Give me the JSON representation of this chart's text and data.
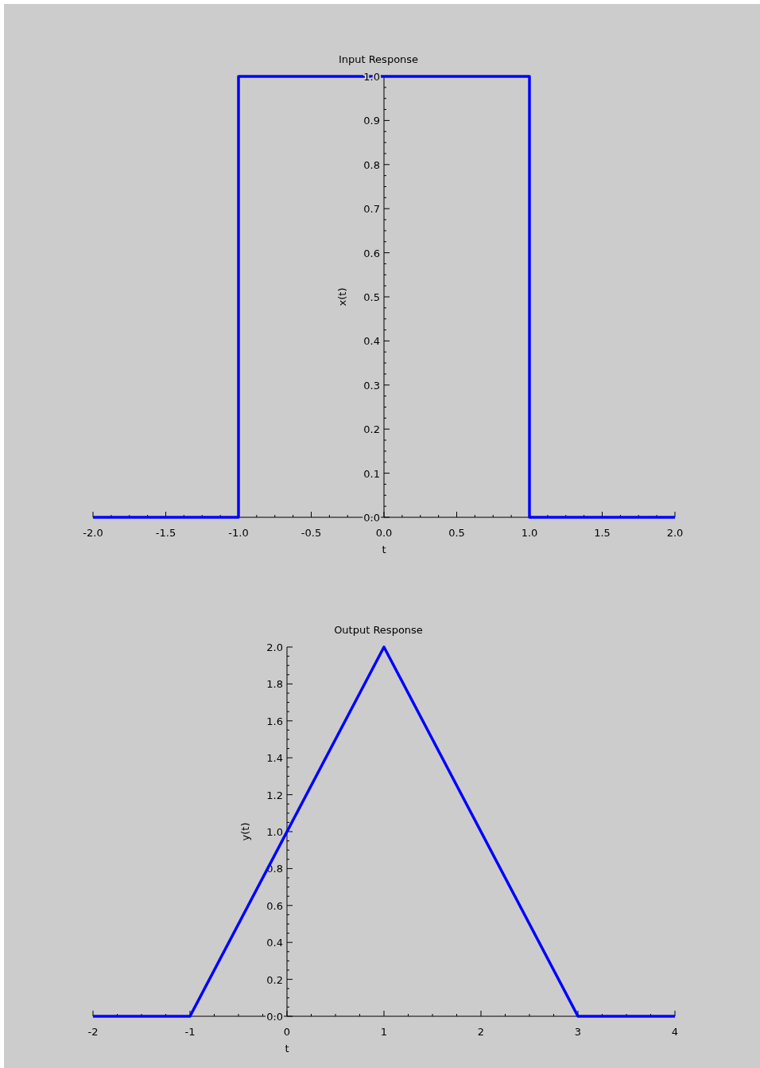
{
  "chart_data": [
    {
      "type": "line",
      "title": "Input Response",
      "xlabel": "t",
      "ylabel": "x(t)",
      "xlim": [
        -2,
        2
      ],
      "ylim": [
        0,
        1
      ],
      "xticks": [
        {
          "value": -2,
          "label": "-2.0"
        },
        {
          "value": -1.5,
          "label": "-1.5"
        },
        {
          "value": -1,
          "label": "-1.0"
        },
        {
          "value": -0.5,
          "label": "-0.5"
        },
        {
          "value": 0,
          "label": "0.0"
        },
        {
          "value": 0.5,
          "label": "0.5"
        },
        {
          "value": 1,
          "label": "1.0"
        },
        {
          "value": 1.5,
          "label": "1.5"
        },
        {
          "value": 2,
          "label": "2.0"
        }
      ],
      "yticks": [
        {
          "value": 0,
          "label": "0.0"
        },
        0.1,
        0.2,
        0.3,
        0.4,
        0.5,
        0.6,
        0.7,
        0.8,
        0.9,
        {
          "value": 1,
          "label": "1.0"
        }
      ],
      "series": [
        {
          "color": "#0000ff",
          "x": [
            -2,
            -1,
            -1,
            1,
            1,
            2
          ],
          "values": [
            0,
            0,
            1,
            1,
            0,
            0
          ]
        }
      ]
    },
    {
      "type": "line",
      "title": "Output Response",
      "xlabel": "t",
      "ylabel": "y(t)",
      "xlim": [
        -2,
        4
      ],
      "ylim": [
        0,
        2
      ],
      "xticks": [
        -2,
        -1,
        0,
        1,
        2,
        3,
        4
      ],
      "yticks": [
        {
          "value": 0,
          "label": "0.0"
        },
        0.2,
        0.4,
        0.6,
        0.8,
        {
          "value": 1,
          "label": "1.0"
        },
        1.2,
        1.4,
        1.6,
        1.8,
        {
          "value": 2,
          "label": "2.0"
        }
      ],
      "series": [
        {
          "color": "#0000ff",
          "x": [
            -2,
            -1,
            1,
            3,
            4
          ],
          "values": [
            0,
            0,
            2,
            0,
            0
          ]
        }
      ]
    }
  ]
}
